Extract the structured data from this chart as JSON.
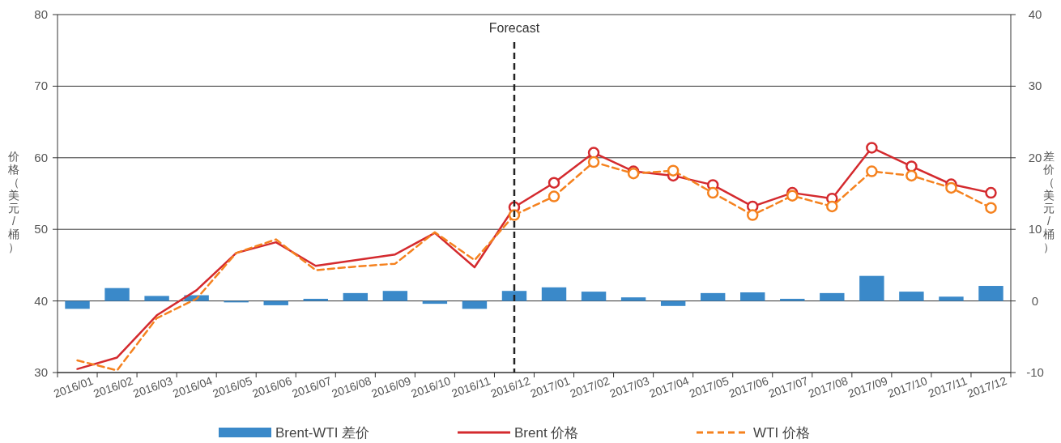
{
  "chart_data": {
    "type": "line",
    "categories": [
      "2016/01",
      "2016/02",
      "2016/03",
      "2016/04",
      "2016/05",
      "2016/06",
      "2016/07",
      "2016/08",
      "2016/09",
      "2016/10",
      "2016/11",
      "2016/12",
      "2017/01",
      "2017/02",
      "2017/03",
      "2017/04",
      "2017/05",
      "2017/06",
      "2017/07",
      "2017/08",
      "2017/09",
      "2017/10",
      "2017/11",
      "2017/12"
    ],
    "ylim": [
      30,
      80
    ],
    "yticks": [
      30,
      40,
      50,
      60,
      70,
      80
    ],
    "y2lim": [
      -10,
      40
    ],
    "y2ticks": [
      -10,
      0,
      10,
      20,
      30,
      40
    ],
    "ylabel": "价格（美元/桶）",
    "y2label": "差价（美元/桶）",
    "grid": "y",
    "legend": "bottom",
    "ref_lines": [
      {
        "axis": "x",
        "value": "2016/12",
        "label": "Forecast",
        "line_style": "dashed",
        "color": "#222222"
      }
    ],
    "series": [
      {
        "name": "Brent-WTI 差价",
        "type": "bar",
        "axis": "y2",
        "color": "#3a89c9",
        "values": [
          -1.1,
          1.8,
          0.7,
          0.8,
          -0.2,
          -0.6,
          0.3,
          1.1,
          1.4,
          -0.4,
          -1.1,
          1.4,
          1.9,
          1.3,
          0.5,
          -0.7,
          1.1,
          1.2,
          0.3,
          1.1,
          3.5,
          1.3,
          0.6,
          2.1
        ]
      },
      {
        "name": "Brent 价格",
        "color": "#d42a2e",
        "line_style": "solid",
        "marker": "none",
        "values": [
          30.5,
          32.1,
          38.0,
          41.5,
          46.7,
          48.2,
          44.9,
          45.7,
          46.5,
          49.5,
          44.7,
          53.1,
          null,
          null,
          null,
          null,
          null,
          null,
          null,
          null,
          null,
          null,
          null,
          null
        ]
      },
      {
        "color": "#d42a2e",
        "line_style": "solid",
        "marker": "circle",
        "values": [
          null,
          null,
          null,
          null,
          null,
          null,
          null,
          null,
          null,
          null,
          null,
          53.1,
          56.5,
          60.7,
          58.1,
          57.5,
          56.2,
          53.2,
          55.1,
          54.3,
          61.4,
          58.8,
          56.3,
          55.1
        ]
      },
      {
        "name": "WTI 价格",
        "color": "#f5821f",
        "line_style": "dashed",
        "marker": "none",
        "values": [
          31.7,
          30.3,
          37.6,
          40.3,
          46.7,
          48.6,
          44.3,
          44.8,
          45.2,
          49.6,
          45.7,
          52.0,
          null,
          null,
          null,
          null,
          null,
          null,
          null,
          null,
          null,
          null,
          null,
          null
        ]
      },
      {
        "color": "#f5821f",
        "line_style": "dashed",
        "marker": "circle",
        "values": [
          null,
          null,
          null,
          null,
          null,
          null,
          null,
          null,
          null,
          null,
          null,
          52.0,
          54.6,
          59.4,
          57.8,
          58.2,
          55.1,
          52.0,
          54.7,
          53.2,
          58.1,
          57.5,
          55.8,
          53.0
        ]
      }
    ]
  }
}
